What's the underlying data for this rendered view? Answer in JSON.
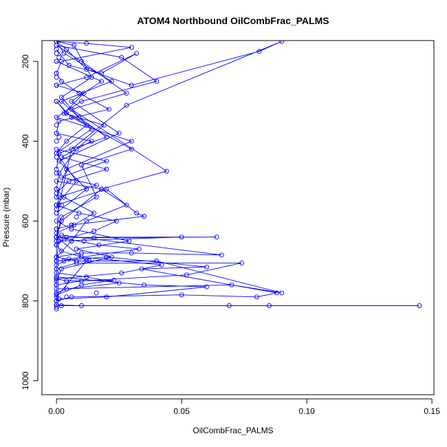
{
  "chart_data": {
    "type": "line",
    "title": "ATOM4 Northbound OilCombFrac_PALMS",
    "xlabel": "OilCombFrac_PALMS",
    "ylabel": "Pressure (mbar)",
    "xlim": [
      -0.0058,
      0.1508
    ],
    "ylim": [
      1035,
      148
    ],
    "y_inverted": true,
    "x_ticks": [
      0.0,
      0.05,
      0.1,
      0.15
    ],
    "x_tick_labels": [
      "0.00",
      "0.05",
      "0.10",
      "0.15"
    ],
    "y_ticks": [
      200,
      400,
      600,
      800,
      1000
    ],
    "y_tick_labels": [
      "200",
      "400",
      "600",
      "800",
      "1000"
    ],
    "grid": false,
    "legend": "none",
    "series_color": "#0000ff",
    "series": [
      {
        "x": [
          0.0,
          0.004,
          0.012,
          0.03,
          0.081,
          0.09,
          0.028,
          0.006,
          0.001,
          0.0,
          0.0,
          0.0
        ],
        "y": [
          150,
          170,
          220,
          260,
          175,
          150,
          310,
          420,
          560,
          650,
          760,
          815
        ]
      },
      {
        "x": [
          0.0,
          0.01,
          0.028,
          0.006,
          0.044,
          0.018,
          0.002,
          0.0,
          0.012,
          0.0
        ],
        "y": [
          160,
          200,
          280,
          320,
          475,
          520,
          600,
          640,
          700,
          790
        ]
      },
      {
        "x": [
          0.0,
          0.002,
          0.145,
          0.085,
          0.069,
          0.01,
          0.0
        ],
        "y": [
          810,
          812,
          812,
          812,
          812,
          812,
          810
        ]
      },
      {
        "x": [
          0.0,
          0.015,
          0.064,
          0.004,
          0.05,
          0.001,
          0.0
        ],
        "y": [
          640,
          642,
          640,
          641,
          640,
          650,
          700
        ]
      },
      {
        "x": [
          0.0,
          0.02,
          0.06,
          0.034,
          0.088,
          0.08,
          0.05,
          0.006,
          0.0
        ],
        "y": [
          700,
          690,
          715,
          720,
          780,
          790,
          785,
          790,
          800
        ]
      },
      {
        "x": [
          0.0,
          0.008,
          0.074,
          0.052,
          0.01,
          0.0
        ],
        "y": [
          720,
          705,
          705,
          735,
          750,
          760
        ]
      },
      {
        "x": [
          0.0,
          0.002,
          0.066,
          0.03,
          0.01,
          0.0
        ],
        "y": [
          640,
          635,
          685,
          680,
          680,
          690
        ]
      },
      {
        "x": [
          0.0,
          0.02,
          0.032,
          0.035,
          0.006,
          0.0
        ],
        "y": [
          560,
          520,
          580,
          588,
          610,
          620
        ]
      },
      {
        "x": [
          0.0,
          0.003,
          0.022,
          0.002,
          0.014,
          0.0,
          0.008,
          0.0
        ],
        "y": [
          150,
          180,
          250,
          300,
          370,
          430,
          500,
          560
        ]
      },
      {
        "x": [
          0.0,
          0.018,
          0.006,
          0.025,
          0.001,
          0.012,
          0.0
        ],
        "y": [
          200,
          250,
          300,
          380,
          450,
          520,
          580
        ]
      },
      {
        "x": [
          0.0,
          0.026,
          0.04,
          0.01,
          0.0,
          0.03,
          0.004,
          0.0
        ],
        "y": [
          160,
          190,
          250,
          300,
          340,
          400,
          470,
          540
        ]
      },
      {
        "x": [
          0.0,
          0.011,
          0.003,
          0.019,
          0.008,
          0.001,
          0.0
        ],
        "y": [
          260,
          280,
          330,
          360,
          420,
          480,
          520
        ]
      },
      {
        "x": [
          0.0,
          0.007,
          0.014,
          0.002,
          0.009,
          0.02,
          0.001,
          0.0
        ],
        "y": [
          150,
          160,
          240,
          290,
          340,
          390,
          430,
          470
        ]
      },
      {
        "x": [
          0.0,
          0.004,
          0.03,
          0.01,
          0.016,
          0.002,
          0.0
        ],
        "y": [
          300,
          330,
          420,
          460,
          540,
          590,
          640
        ]
      },
      {
        "x": [
          0.0,
          0.018,
          0.028,
          0.012,
          0.006,
          0.0
        ],
        "y": [
          500,
          520,
          560,
          600,
          650,
          690
        ]
      },
      {
        "x": [
          0.0,
          0.006,
          0.029,
          0.008,
          0.022,
          0.002,
          0.0
        ],
        "y": [
          600,
          620,
          650,
          670,
          690,
          720,
          750
        ]
      },
      {
        "x": [
          0.0,
          0.012,
          0.025,
          0.004,
          0.0
        ],
        "y": [
          730,
          740,
          755,
          770,
          780
        ]
      },
      {
        "x": [
          0.0,
          0.035,
          0.06,
          0.02,
          0.001,
          0.0
        ],
        "y": [
          740,
          760,
          765,
          790,
          795,
          800
        ]
      },
      {
        "x": [
          0.0,
          0.014,
          0.002,
          0.02,
          0.005,
          0.0
        ],
        "y": [
          380,
          400,
          440,
          470,
          500,
          530
        ]
      },
      {
        "x": [
          0.0,
          0.005,
          0.018,
          0.032,
          0.012,
          0.0
        ],
        "y": [
          170,
          210,
          230,
          180,
          240,
          260
        ]
      },
      {
        "x": [
          0.0,
          0.009,
          0.024,
          0.015,
          0.003,
          0.0
        ],
        "y": [
          560,
          580,
          600,
          625,
          645,
          660
        ]
      },
      {
        "x": [
          0.0,
          0.002,
          0.01,
          0.042,
          0.026,
          0.0
        ],
        "y": [
          660,
          675,
          690,
          710,
          730,
          745
        ]
      },
      {
        "x": [
          0.0,
          0.008,
          0.04,
          0.09,
          0.07,
          0.0
        ],
        "y": [
          690,
          700,
          700,
          780,
          760,
          770
        ]
      },
      {
        "x": [
          0.0,
          0.02,
          0.002,
          0.016,
          0.001,
          0.0
        ],
        "y": [
          420,
          450,
          490,
          510,
          540,
          570
        ]
      },
      {
        "x": [
          0.0,
          0.006,
          0.012,
          0.004,
          0.0
        ],
        "y": [
          300,
          340,
          360,
          400,
          430
        ]
      },
      {
        "x": [
          0.0,
          0.003,
          0.015,
          0.007,
          0.0
        ],
        "y": [
          520,
          540,
          580,
          610,
          630
        ]
      },
      {
        "x": [
          0.0,
          0.017,
          0.033,
          0.005,
          0.0
        ],
        "y": [
          640,
          660,
          670,
          695,
          710
        ]
      },
      {
        "x": [
          0.0,
          0.004,
          0.023,
          0.01,
          0.0
        ],
        "y": [
          745,
          750,
          748,
          760,
          785
        ]
      },
      {
        "x": [
          0.0,
          0.012,
          0.03,
          0.002,
          0.0
        ],
        "y": [
          150,
          155,
          165,
          200,
          230
        ]
      },
      {
        "x": [
          0.0,
          0.002,
          0.009,
          0.021,
          0.001,
          0.0
        ],
        "y": [
          230,
          250,
          280,
          320,
          350,
          380
        ]
      }
    ],
    "points_only": {
      "x": [
        0.0,
        0.0,
        0.0,
        0.0,
        0.0,
        0.0,
        0.0,
        0.0,
        0.0,
        0.0,
        0.0,
        0.0,
        0.0,
        0.0,
        0.0,
        0.0,
        0.0,
        0.0,
        0.0,
        0.0,
        0.001,
        0.001,
        0.002,
        0.003,
        0.004,
        0.006,
        0.008,
        0.011,
        0.013,
        0.016
      ],
      "y": [
        180,
        200,
        240,
        300,
        360,
        400,
        440,
        480,
        540,
        580,
        620,
        660,
        700,
        720,
        740,
        760,
        780,
        800,
        810,
        820,
        190,
        390,
        560,
        700,
        790,
        610,
        590,
        650,
        700,
        780
      ]
    }
  }
}
